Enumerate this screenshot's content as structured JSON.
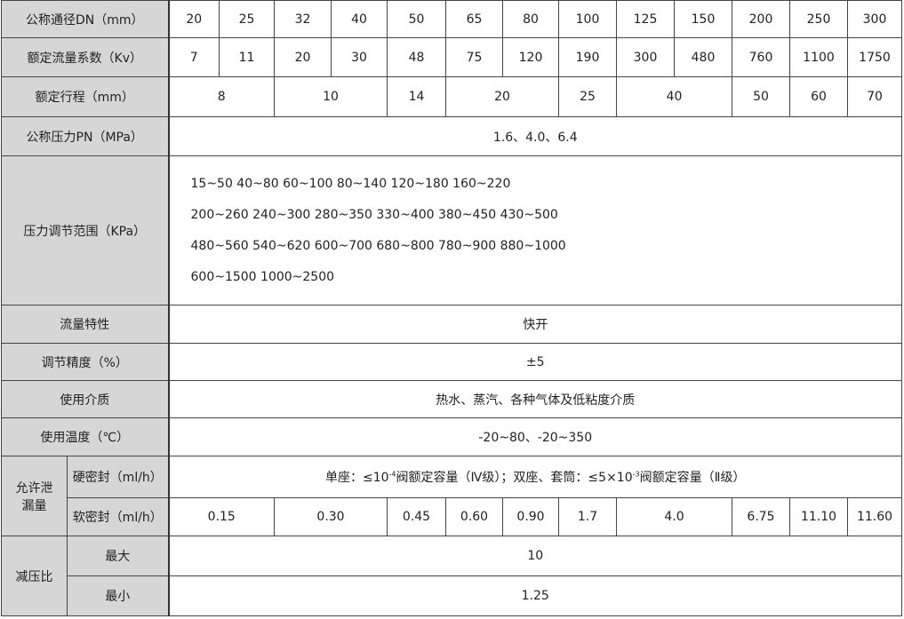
{
  "rows": {
    "dn": {
      "label": "公称通径DN（mm）",
      "values": [
        "20",
        "25",
        "32",
        "40",
        "50",
        "65",
        "80",
        "100",
        "125",
        "150",
        "200",
        "250",
        "300"
      ]
    },
    "kv": {
      "label": "额定流量系数（Kv）",
      "values": [
        "7",
        "11",
        "20",
        "30",
        "48",
        "75",
        "120",
        "190",
        "300",
        "480",
        "760",
        "1100",
        "1750"
      ]
    },
    "stroke": {
      "label": "额定行程（mm）",
      "values": [
        "8",
        "10",
        "14",
        "20",
        "25",
        "40",
        "50",
        "60",
        "70"
      ]
    },
    "pn": {
      "label": "公称压力PN（MPa）",
      "value": "1.6、4.0、6.4"
    },
    "range": {
      "label": "压力调节范围（KPa）",
      "lines": [
        "15~50 40~80 60~100 80~140 120~180 160~220",
        "200~260 240~300 280~350 330~400 380~450 430~500",
        "480~560 540~620 600~700 680~800 780~900 880~1000",
        "600~1500 1000~2500"
      ]
    },
    "flow": {
      "label": "流量特性",
      "value": "快开"
    },
    "accuracy": {
      "label": "调节精度（%）",
      "value": "±5"
    },
    "medium": {
      "label": "使用介质",
      "value": "热水、蒸汽、各种气体及低粘度介质"
    },
    "temp": {
      "label": "使用温度（℃）",
      "value": "-20~80、-20~350"
    },
    "leak": {
      "label": "允许泄漏量",
      "hard": {
        "label": "硬密封（ml/h）",
        "p1": "单座：≤10",
        "e1": "-4",
        "p2": "阀额定容量（Ⅳ级）；双座、套筒：≤5×10",
        "e2": "-3",
        "p3": "阀额定容量（Ⅱ级）"
      },
      "soft": {
        "label": "软密封（ml/h）",
        "values": [
          "0.15",
          "0.30",
          "0.45",
          "0.60",
          "0.90",
          "1.7",
          "4.0",
          "6.75",
          "11.10",
          "11.60"
        ]
      }
    },
    "ratio": {
      "label": "减压比",
      "max": {
        "label": "最大",
        "value": "10"
      },
      "min": {
        "label": "最小",
        "value": "1.25"
      }
    }
  }
}
